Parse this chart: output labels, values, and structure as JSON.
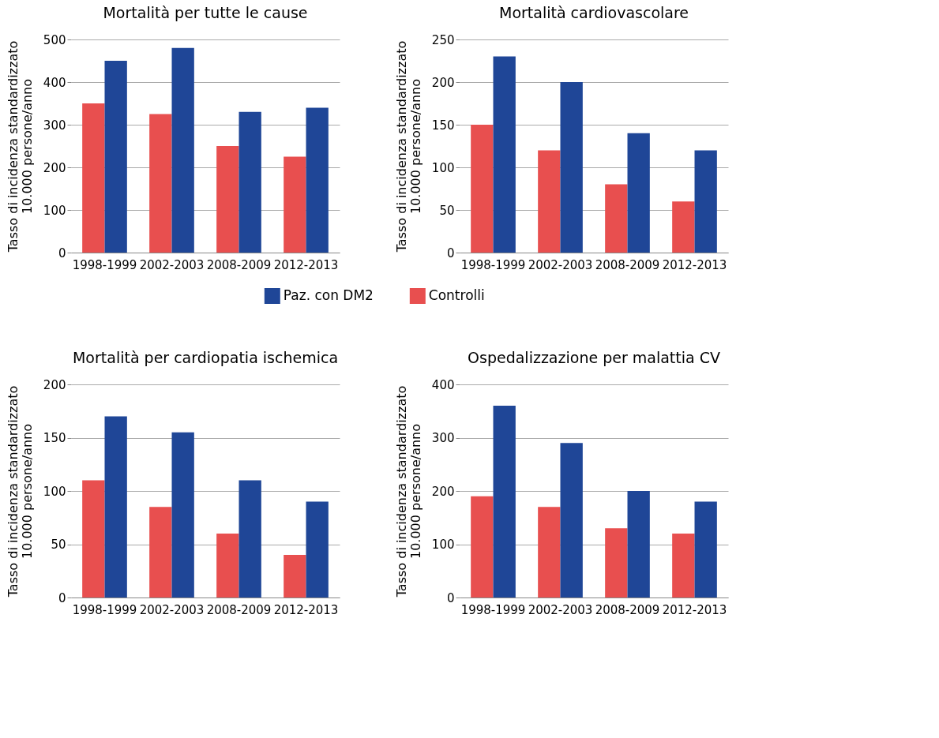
{
  "chart_data": [
    {
      "type": "bar",
      "title": "Mortalità per tutte le cause",
      "ylabel": "Tasso di incidenza standardizzato\n10.000 persone/anno",
      "categories": [
        "1998-1999",
        "2002-2003",
        "2008-2009",
        "2012-2013"
      ],
      "ylim": [
        0,
        500
      ],
      "yticks": [
        0,
        100,
        200,
        300,
        400,
        500
      ],
      "grid": "y",
      "legend": "bottom",
      "series": [
        {
          "name": "Controlli",
          "color": "#e84f4f",
          "values": [
            350,
            325,
            250,
            225
          ]
        },
        {
          "name": "Paz. con DM2",
          "color": "#1f4697",
          "values": [
            450,
            480,
            330,
            340
          ]
        }
      ]
    },
    {
      "type": "bar",
      "title": "Mortalità cardiovascolare",
      "ylabel": "Tasso di incidenza standardizzato\n10.000 persone/anno",
      "categories": [
        "1998-1999",
        "2002-2003",
        "2008-2009",
        "2012-2013"
      ],
      "ylim": [
        0,
        250
      ],
      "yticks": [
        0,
        50,
        100,
        150,
        200,
        250
      ],
      "grid": "y",
      "series": [
        {
          "name": "Controlli",
          "color": "#e84f4f",
          "values": [
            150,
            120,
            80,
            60
          ]
        },
        {
          "name": "Paz. con DM2",
          "color": "#1f4697",
          "values": [
            230,
            200,
            140,
            120
          ]
        }
      ]
    },
    {
      "type": "bar",
      "title": "Mortalità per cardiopatia ischemica",
      "ylabel": "Tasso di incidenza standardizzato\n10.000 persone/anno",
      "categories": [
        "1998-1999",
        "2002-2003",
        "2008-2009",
        "2012-2013"
      ],
      "ylim": [
        0,
        200
      ],
      "yticks": [
        0,
        50,
        100,
        150,
        200
      ],
      "grid": "y",
      "series": [
        {
          "name": "Controlli",
          "color": "#e84f4f",
          "values": [
            110,
            85,
            60,
            40
          ]
        },
        {
          "name": "Paz. con DM2",
          "color": "#1f4697",
          "values": [
            170,
            155,
            110,
            90
          ]
        }
      ]
    },
    {
      "type": "bar",
      "title": "Ospedalizzazione per malattia CV",
      "ylabel": "Tasso di incidenza standardizzato\n10.000 persone/anno",
      "categories": [
        "1998-1999",
        "2002-2003",
        "2008-2009",
        "2012-2013"
      ],
      "ylim": [
        0,
        400
      ],
      "yticks": [
        0,
        100,
        200,
        300,
        400
      ],
      "grid": "y",
      "series": [
        {
          "name": "Controlli",
          "color": "#e84f4f",
          "values": [
            190,
            170,
            130,
            120
          ]
        },
        {
          "name": "Paz. con DM2",
          "color": "#1f4697",
          "values": [
            360,
            290,
            200,
            180
          ]
        }
      ]
    }
  ]
}
